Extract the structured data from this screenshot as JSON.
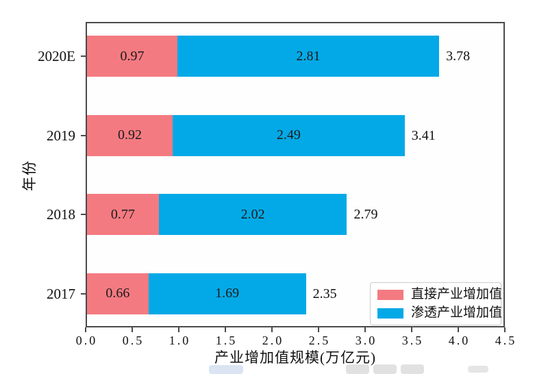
{
  "chart_data": {
    "type": "bar",
    "orientation": "horizontal",
    "stacked": true,
    "categories_top_to_bottom": [
      "2020E",
      "2019",
      "2018",
      "2017"
    ],
    "series": [
      {
        "name": "直接产业增加值",
        "color": "#F47A81",
        "values": [
          0.97,
          0.92,
          0.77,
          0.66
        ]
      },
      {
        "name": "渗透产业增加值",
        "color": "#03A9E6",
        "values": [
          2.81,
          2.49,
          2.02,
          1.69
        ]
      }
    ],
    "totals": [
      3.78,
      3.41,
      2.79,
      2.35
    ],
    "bar_value_labels": [
      [
        "0.97",
        "0.92",
        "0.77",
        "0.66"
      ],
      [
        "2.81",
        "2.49",
        "2.02",
        "1.69"
      ]
    ],
    "total_labels": [
      "3.78",
      "3.41",
      "2.79",
      "2.35"
    ],
    "xlabel": "产业增加值规模(万亿元)",
    "ylabel": "年份",
    "xlim": [
      0.0,
      4.5
    ],
    "x_ticks": [
      "0.0",
      "0.5",
      "1.0",
      "1.5",
      "2.0",
      "2.5",
      "3.0",
      "3.5",
      "4.0",
      "4.5"
    ],
    "grid": false,
    "legend_position": "lower right",
    "frame_color": "#4a4a4a",
    "text_color": "#111111"
  }
}
